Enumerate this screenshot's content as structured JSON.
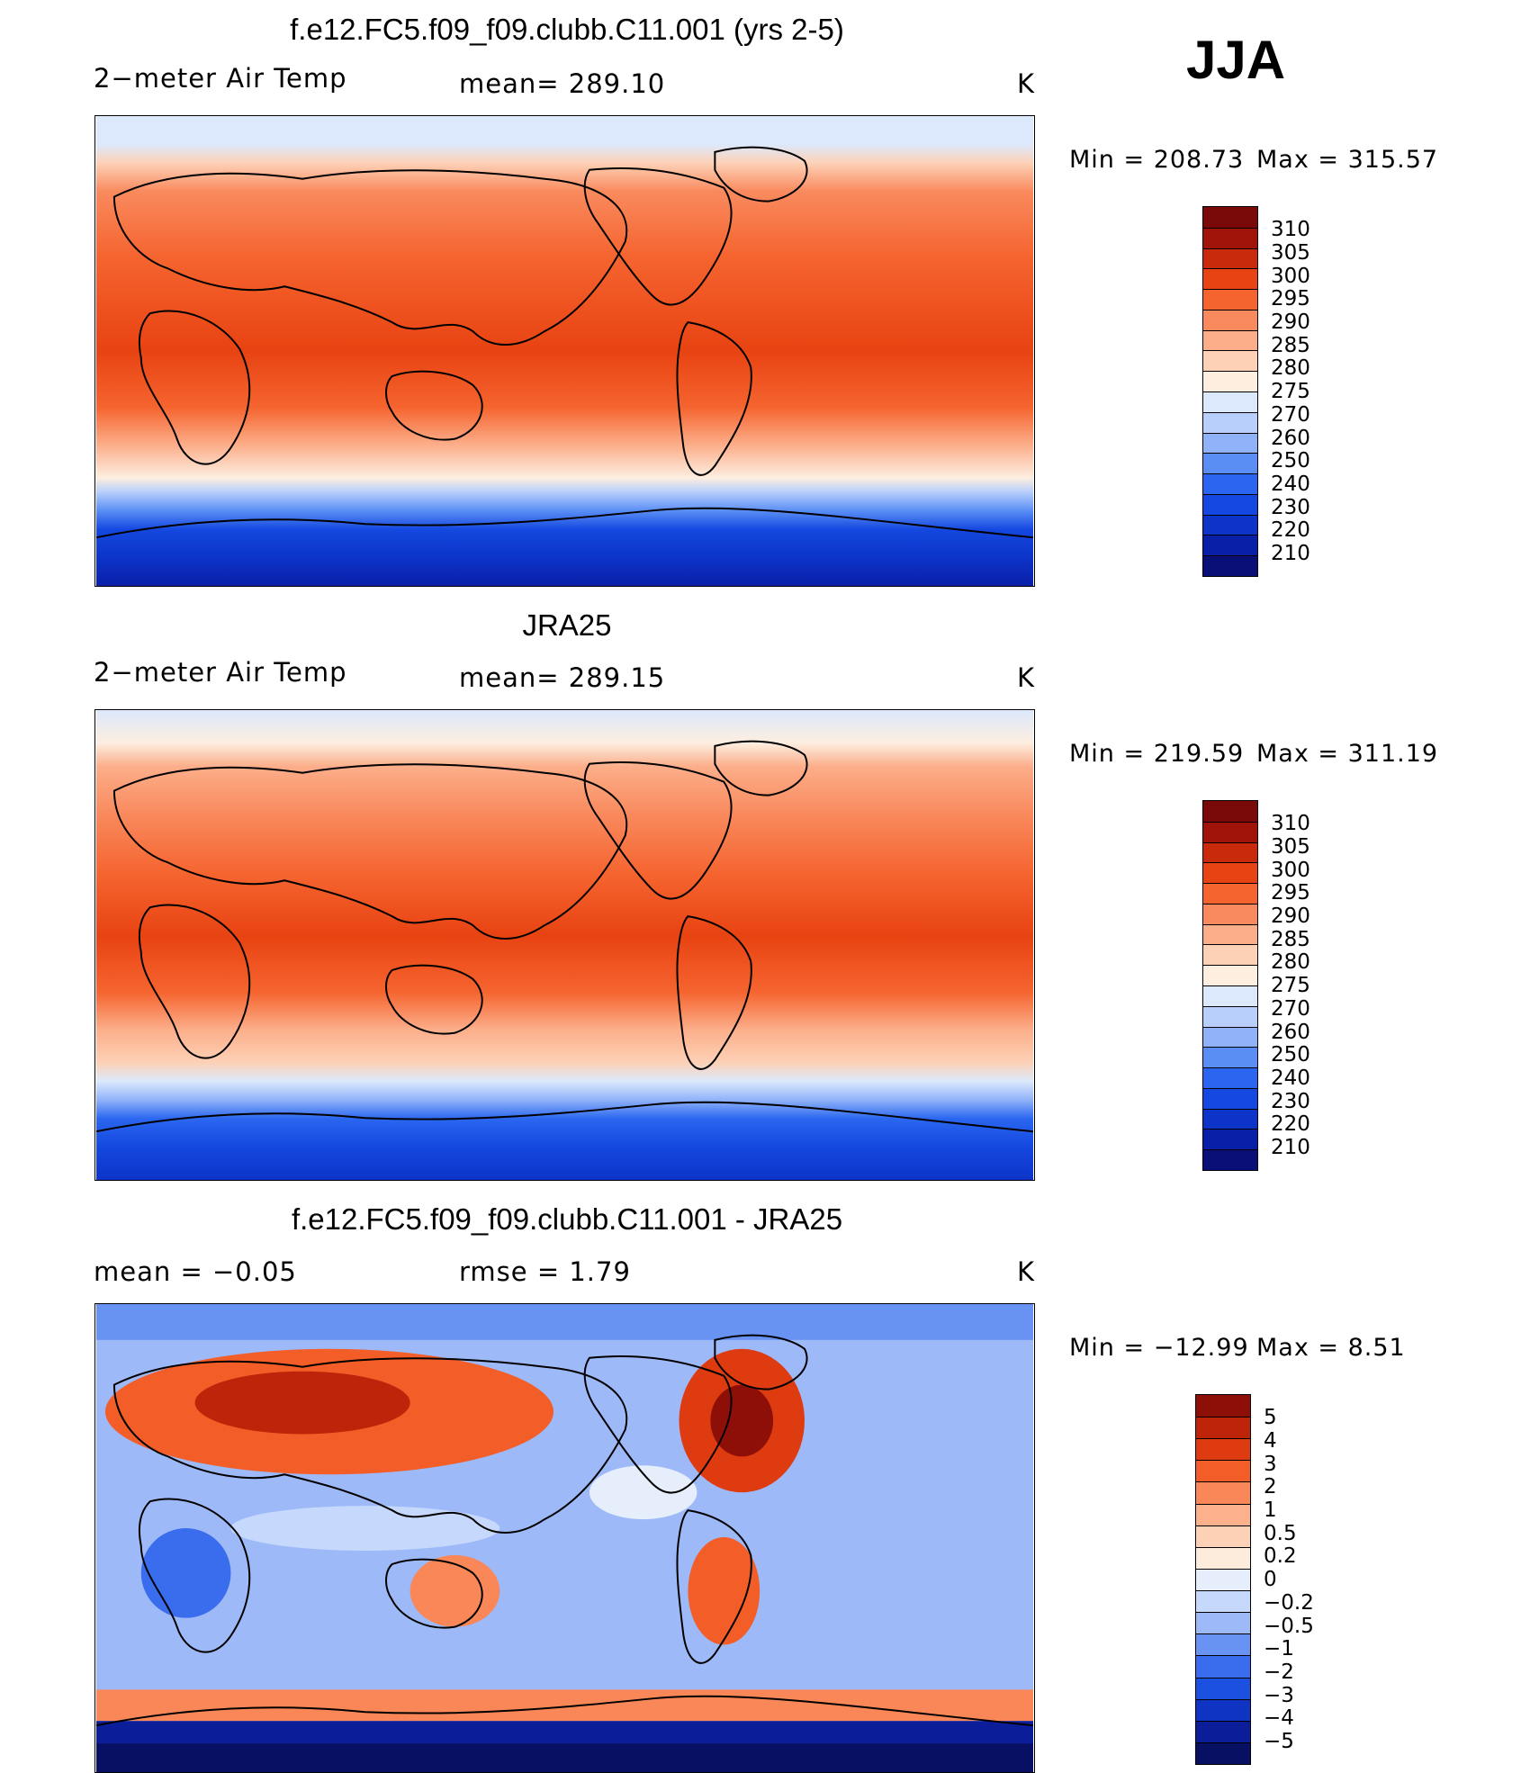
{
  "season": "JJA",
  "colors": {
    "abs_scale": [
      "#0a0f78",
      "#0a1fa8",
      "#0d34c8",
      "#1448e0",
      "#2a66f0",
      "#5a8ef5",
      "#8fb2f8",
      "#b8cffb",
      "#dce9fc",
      "#fdeee0",
      "#fdd1b6",
      "#fcae8a",
      "#f98a5e",
      "#f5642f",
      "#e84312",
      "#c92a0c",
      "#a01309",
      "#7a0a0a"
    ],
    "diff_scale": [
      "#081064",
      "#0c1d9a",
      "#0f34c4",
      "#1c50e0",
      "#3a6ded",
      "#6893f3",
      "#9db9f8",
      "#c6d8fb",
      "#e6eefc",
      "#fdebdc",
      "#fcd1b6",
      "#fcb08c",
      "#f98757",
      "#f35d27",
      "#de3c10",
      "#bd2409",
      "#8e0f08"
    ]
  },
  "panels": [
    {
      "title": "f.e12.FC5.f09_f09.clubb.C11.001 (yrs 2-5)",
      "left_label": "2−meter Air Temp",
      "center_label": "mean=  289.10",
      "units": "K",
      "min_label": "Min  =  208.73",
      "max_label": "Max  =  315.57"
    },
    {
      "title": "JRA25",
      "left_label": "2−meter Air Temp",
      "center_label": "mean=  289.15",
      "units": "K",
      "min_label": "Min  =  219.59",
      "max_label": "Max  =  311.19"
    },
    {
      "title": "f.e12.FC5.f09_f09.clubb.C11.001 - JRA25",
      "left_label": "mean  =      −0.05",
      "center_label": "rmse  =       1.79",
      "units": "K",
      "min_label": "Min  =  −12.99",
      "max_label": "Max  =       8.51"
    }
  ],
  "chart_data": [
    {
      "type": "heatmap",
      "title": "f.e12.FC5.f09_f09.clubb.C11.001 (yrs 2-5)",
      "variable": "2−meter Air Temp",
      "units": "K",
      "mean": 289.1,
      "min": 208.73,
      "max": 315.57,
      "colorbar_levels": [
        210,
        220,
        230,
        240,
        250,
        260,
        270,
        275,
        280,
        285,
        290,
        295,
        300,
        305,
        310
      ],
      "colorbar_labels": [
        "310",
        "305",
        "300",
        "295",
        "290",
        "285",
        "280",
        "275",
        "270",
        "260",
        "250",
        "240",
        "230",
        "220",
        "210"
      ]
    },
    {
      "type": "heatmap",
      "title": "JRA25",
      "variable": "2−meter Air Temp",
      "units": "K",
      "mean": 289.15,
      "min": 219.59,
      "max": 311.19,
      "colorbar_levels": [
        210,
        220,
        230,
        240,
        250,
        260,
        270,
        275,
        280,
        285,
        290,
        295,
        300,
        305,
        310
      ],
      "colorbar_labels": [
        "310",
        "305",
        "300",
        "295",
        "290",
        "285",
        "280",
        "275",
        "270",
        "260",
        "250",
        "240",
        "230",
        "220",
        "210"
      ]
    },
    {
      "type": "heatmap",
      "title": "f.e12.FC5.f09_f09.clubb.C11.001 - JRA25",
      "units": "K",
      "mean": -0.05,
      "rmse": 1.79,
      "min": -12.99,
      "max": 8.51,
      "colorbar_levels": [
        -5,
        -4,
        -3,
        -2,
        -1,
        -0.5,
        -0.2,
        0,
        0.2,
        0.5,
        1,
        2,
        3,
        4,
        5
      ],
      "colorbar_labels": [
        "5",
        "4",
        "3",
        "2",
        "1",
        "0.5",
        "0.2",
        "0",
        "−0.2",
        "−0.5",
        "−1",
        "−2",
        "−3",
        "−4",
        "−5"
      ]
    }
  ]
}
